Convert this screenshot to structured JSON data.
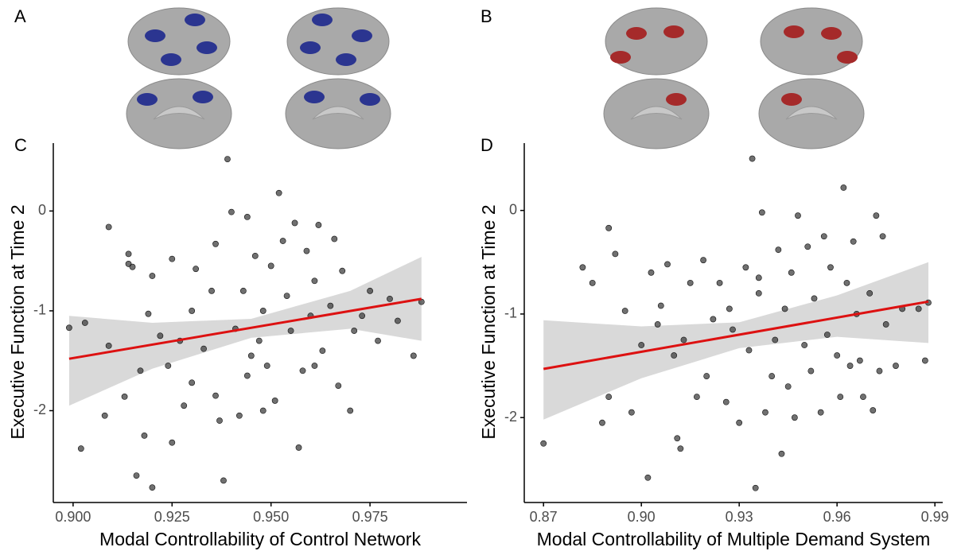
{
  "brain_panels": [
    {
      "label": "A",
      "color": "#2b3590"
    },
    {
      "label": "B",
      "color": "#a52a2a"
    }
  ],
  "chart_data": [
    {
      "type": "scatter",
      "panel": "C",
      "x_label": "Modal Controllability of Control Network",
      "y_label": "Executive Function at Time 2",
      "xlim": [
        0.895,
        0.9995
      ],
      "ylim": [
        -2.92,
        0.68
      ],
      "xticks": [
        {
          "value": 0.9,
          "label": "0.900"
        },
        {
          "value": 0.925,
          "label": "0.925"
        },
        {
          "value": 0.95,
          "label": "0.950"
        },
        {
          "value": 0.975,
          "label": "0.975"
        }
      ],
      "yticks": [
        0,
        -1,
        -2
      ],
      "series": [
        {
          "color": "#333333",
          "x": [
            0.899,
            0.902,
            0.903,
            0.908,
            0.909,
            0.909,
            0.913,
            0.914,
            0.914,
            0.915,
            0.916,
            0.917,
            0.918,
            0.919,
            0.92,
            0.92,
            0.922,
            0.924,
            0.925,
            0.925,
            0.927,
            0.928,
            0.93,
            0.931,
            0.933,
            0.935,
            0.936,
            0.937,
            0.938,
            0.939,
            0.94,
            0.941,
            0.942,
            0.943,
            0.944,
            0.945,
            0.946,
            0.947,
            0.948,
            0.949,
            0.95,
            0.951,
            0.952,
            0.953,
            0.954,
            0.955,
            0.956,
            0.957,
            0.958,
            0.959,
            0.96,
            0.961,
            0.962,
            0.963,
            0.965,
            0.966,
            0.967,
            0.968,
            0.97,
            0.971,
            0.973,
            0.975,
            0.977,
            0.98,
            0.982,
            0.986,
            0.988,
            0.944,
            0.936,
            0.93,
            0.948,
            0.961
          ],
          "values": [
            -1.17,
            -2.38,
            -1.12,
            -2.05,
            -0.16,
            -1.35,
            -1.86,
            -0.43,
            -0.53,
            -0.56,
            -2.65,
            -1.6,
            -2.25,
            -1.03,
            -0.65,
            -2.77,
            -1.25,
            -1.55,
            -2.32,
            -0.48,
            -1.3,
            -1.95,
            -1.72,
            -0.58,
            -1.38,
            -0.8,
            -1.85,
            -2.1,
            -2.7,
            0.52,
            -0.01,
            -1.18,
            -2.05,
            -0.8,
            -1.65,
            -1.45,
            -0.45,
            -1.3,
            -1.0,
            -1.55,
            -0.55,
            -1.9,
            0.18,
            -0.3,
            -0.85,
            -1.2,
            -0.12,
            -2.37,
            -1.6,
            -0.4,
            -1.05,
            -0.7,
            -0.14,
            -1.4,
            -0.95,
            -0.28,
            -1.75,
            -0.6,
            -2.0,
            -1.2,
            -1.05,
            -0.8,
            -1.3,
            -0.88,
            -1.1,
            -1.45,
            -0.91,
            -0.06,
            -0.33,
            -1.0,
            -2.0,
            -1.55
          ]
        }
      ],
      "fit": {
        "color": "#dd1111",
        "x": [
          0.899,
          0.988
        ],
        "y": [
          -1.48,
          -0.88
        ]
      },
      "band": {
        "color": "#d9d9d9",
        "x": [
          0.899,
          0.92,
          0.945,
          0.97,
          0.988
        ],
        "upper": [
          -1.05,
          -1.12,
          -1.08,
          -0.8,
          -0.46
        ],
        "lower": [
          -1.95,
          -1.58,
          -1.27,
          -1.18,
          -1.3
        ]
      }
    },
    {
      "type": "scatter",
      "panel": "D",
      "x_label": "Modal Controllability of Multiple Demand System",
      "y_label": "Executive Function at Time 2",
      "xlim": [
        0.8641,
        0.9924
      ],
      "ylim": [
        -2.82,
        0.65
      ],
      "xticks": [
        0.87,
        {
          "value": 0.9,
          "label": "0.90"
        },
        0.93,
        0.96,
        0.99
      ],
      "yticks": [
        0,
        -1,
        -2
      ],
      "series": [
        {
          "color": "#333333",
          "x": [
            0.87,
            0.882,
            0.885,
            0.888,
            0.89,
            0.89,
            0.892,
            0.895,
            0.897,
            0.9,
            0.902,
            0.903,
            0.905,
            0.906,
            0.908,
            0.91,
            0.911,
            0.912,
            0.913,
            0.915,
            0.917,
            0.919,
            0.92,
            0.922,
            0.924,
            0.926,
            0.928,
            0.93,
            0.932,
            0.933,
            0.934,
            0.935,
            0.936,
            0.937,
            0.938,
            0.94,
            0.941,
            0.942,
            0.943,
            0.944,
            0.945,
            0.946,
            0.947,
            0.948,
            0.95,
            0.951,
            0.952,
            0.953,
            0.955,
            0.956,
            0.957,
            0.958,
            0.96,
            0.961,
            0.962,
            0.963,
            0.964,
            0.965,
            0.966,
            0.967,
            0.968,
            0.97,
            0.971,
            0.972,
            0.973,
            0.974,
            0.975,
            0.978,
            0.98,
            0.985,
            0.987,
            0.988,
            0.936,
            0.927
          ],
          "values": [
            -2.25,
            -0.55,
            -0.7,
            -2.05,
            -0.17,
            -1.8,
            -0.42,
            -0.97,
            -1.95,
            -1.3,
            -2.58,
            -0.6,
            -1.1,
            -0.92,
            -0.52,
            -1.4,
            -2.2,
            -2.3,
            -1.25,
            -0.7,
            -1.8,
            -0.48,
            -1.6,
            -1.05,
            -0.7,
            -1.85,
            -1.15,
            -2.05,
            -0.55,
            -1.35,
            0.5,
            -2.68,
            -0.8,
            -0.02,
            -1.95,
            -1.6,
            -1.25,
            -0.38,
            -2.35,
            -0.95,
            -1.7,
            -0.6,
            -2.0,
            -0.05,
            -1.3,
            -0.35,
            -1.55,
            -0.85,
            -1.95,
            -0.25,
            -1.2,
            -0.55,
            -1.4,
            -1.8,
            0.22,
            -0.7,
            -1.5,
            -0.3,
            -1.0,
            -1.45,
            -1.8,
            -0.8,
            -1.93,
            -0.05,
            -1.55,
            -0.25,
            -1.1,
            -1.5,
            -0.95,
            -0.95,
            -1.45,
            -0.89,
            -0.65,
            -0.95
          ]
        }
      ],
      "fit": {
        "color": "#dd1111",
        "x": [
          0.87,
          0.988
        ],
        "y": [
          -1.53,
          -0.88
        ]
      },
      "band": {
        "color": "#d9d9d9",
        "x": [
          0.87,
          0.9,
          0.93,
          0.96,
          0.988
        ],
        "upper": [
          -1.06,
          -1.12,
          -1.08,
          -0.82,
          -0.5
        ],
        "lower": [
          -2.02,
          -1.62,
          -1.33,
          -1.22,
          -1.28
        ]
      }
    }
  ]
}
